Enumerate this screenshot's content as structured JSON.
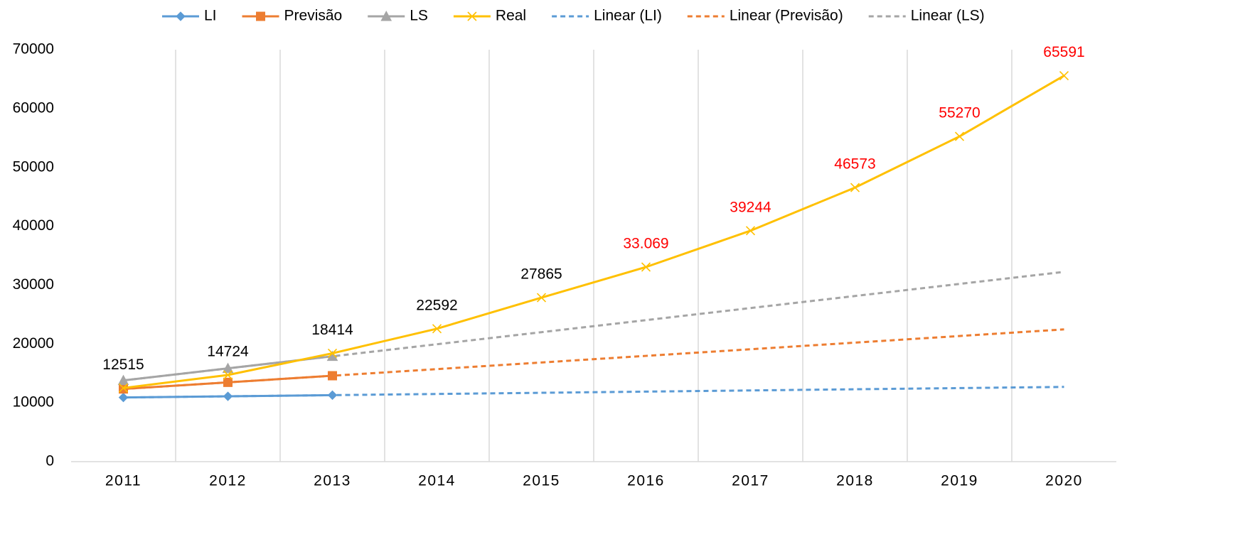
{
  "chart_data": {
    "type": "line",
    "categories": [
      "2011",
      "2012",
      "2013",
      "2014",
      "2015",
      "2016",
      "2017",
      "2018",
      "2019",
      "2020"
    ],
    "series": [
      {
        "name": "LI",
        "color": "#5b9bd5",
        "marker": "diamond",
        "dash": false,
        "values": [
          10900,
          11100,
          11300,
          null,
          null,
          null,
          null,
          null,
          null,
          null
        ]
      },
      {
        "name": "Previsão",
        "color": "#ed7d31",
        "marker": "square",
        "dash": false,
        "values": [
          12350,
          13475,
          14600,
          null,
          null,
          null,
          null,
          null,
          null,
          null
        ]
      },
      {
        "name": "LS",
        "color": "#a5a5a5",
        "marker": "triangle",
        "dash": false,
        "values": [
          13800,
          15850,
          17900,
          null,
          null,
          null,
          null,
          null,
          null,
          null
        ]
      },
      {
        "name": "Real",
        "color": "#ffc000",
        "marker": "x",
        "dash": false,
        "values": [
          12515,
          14724,
          18414,
          22592,
          27865,
          33069,
          39244,
          46573,
          55270,
          65591
        ],
        "value_labels": [
          "12515",
          "14724",
          "18414",
          "22592",
          "27865",
          "33.069",
          "39244",
          "46573",
          "55270",
          "65591"
        ],
        "value_label_colors": [
          "#000000",
          "#000000",
          "#000000",
          "#000000",
          "#000000",
          "#ff0000",
          "#ff0000",
          "#ff0000",
          "#ff0000",
          "#ff0000"
        ]
      },
      {
        "name": "Linear (LI)",
        "color": "#5b9bd5",
        "marker": "none",
        "dash": true,
        "values": [
          10900,
          11100,
          11300,
          11500,
          11700,
          11900,
          12100,
          12300,
          12500,
          12700
        ]
      },
      {
        "name": "Linear (Previsão)",
        "color": "#ed7d31",
        "marker": "none",
        "dash": true,
        "values": [
          12350,
          13475,
          14600,
          15725,
          16850,
          17975,
          19100,
          20225,
          21350,
          22475
        ]
      },
      {
        "name": "Linear (LS)",
        "color": "#a5a5a5",
        "marker": "none",
        "dash": true,
        "values": [
          13800,
          15850,
          17900,
          19950,
          22000,
          24050,
          26100,
          28150,
          30200,
          32250
        ]
      }
    ],
    "ylim": [
      0,
      70000
    ],
    "yticks": [
      0,
      10000,
      20000,
      30000,
      40000,
      50000,
      60000,
      70000
    ],
    "grid": "x",
    "legend": "top"
  }
}
